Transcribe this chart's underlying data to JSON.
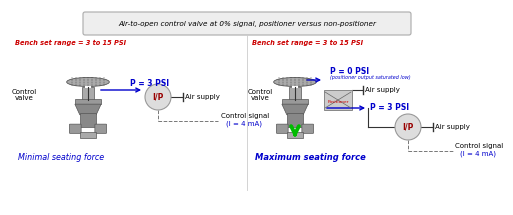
{
  "title": "Air-to-open control valve at 0% signal, positioner versus non-positioner",
  "bench_set_text": "Bench set range = 3 to 15 PSI",
  "bench_set_color": "#cc0000",
  "left_p_label": "P = 3 PSI",
  "left_air_supply": "Air supply",
  "left_control_signal": "Control signal",
  "left_control_signal2": "(I = 4 mA)",
  "left_bottom_label": "Minimal seating force",
  "right_p0_label": "P = 0 PSI",
  "right_p0_sub": "(positioner output saturated low)",
  "right_air_supply1": "Air supply",
  "right_p3_label": "P = 3 PSI",
  "right_air_supply2": "Air supply",
  "right_control_signal": "Control signal",
  "right_control_signal2": "(I = 4 mA)",
  "right_positioner_label": "Positioner",
  "right_bottom_label": "Maximum seating force",
  "cv_label1": "Control",
  "cv_label2": "valve",
  "blue": "#0000cc",
  "red": "#cc0000",
  "dark_gray": "#666666",
  "valve_gray": "#888888",
  "valve_dark": "#555555",
  "green": "#00bb00",
  "bg": "#ffffff"
}
